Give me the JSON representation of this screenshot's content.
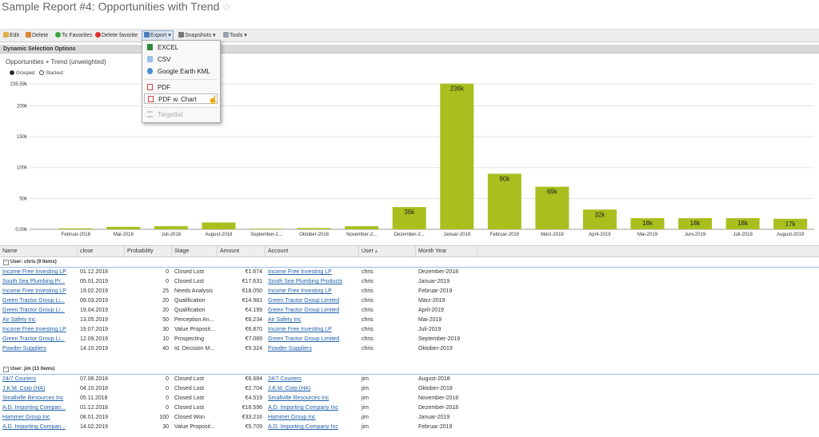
{
  "page_title": "Sample Report #4: Opportunities with Trend",
  "toolbar": {
    "edit": "Edit",
    "delete": "Delete",
    "to_favorites": "To Favorites",
    "delete_favorite": "Delete favorite",
    "export": "Export",
    "snapshots": "Snapshots",
    "tools": "Tools"
  },
  "export_menu": {
    "excel": "EXCEL",
    "csv": "CSV",
    "kml": "Google Earth KML",
    "pdf": "PDF",
    "pdf_chart": "PDF w. Chart",
    "targetlist": "Targetlist"
  },
  "section_title": "Dynamic Selection Options",
  "chart_options": {
    "grouped": "Grouped",
    "stacked": "Stacked",
    "selected": "grouped"
  },
  "chart_data": {
    "type": "bar",
    "title": "Opportunities + Trend (unweighted)",
    "bar_color": "#a8bf1e",
    "categories": [
      "Februar-2018",
      "Mai-2018",
      "Juli-2018",
      "August-2018",
      "September-2...",
      "Oktober-2018",
      "November-2...",
      "Dezember-2...",
      "Januar-2019",
      "Februar-2019",
      "März-2019",
      "April-2019",
      "Mai-2019",
      "Juni-2019",
      "Juli-2019",
      "August-2019"
    ],
    "values": [
      1500,
      4000,
      5000,
      11000,
      1000,
      2000,
      5000,
      36000,
      236000,
      90000,
      69000,
      32000,
      18000,
      18000,
      18000,
      17000
    ],
    "data_labels": [
      "",
      "",
      "",
      "",
      "",
      "",
      "",
      "36k",
      "236k",
      "90k",
      "69k",
      "32k",
      "18k",
      "18k",
      "18k",
      "17k"
    ],
    "ylim": [
      0,
      235590
    ],
    "yticks": [
      0,
      50000,
      100000,
      150000,
      200000,
      235590
    ],
    "ytick_labels": [
      "0,00k",
      "50k",
      "100k",
      "150k",
      "200k",
      "235,59k"
    ],
    "grid": true
  },
  "grid": {
    "columns": [
      "Name",
      "close",
      "Probability",
      "Stage",
      "Amount",
      "Account",
      "User",
      "Month Year"
    ],
    "groups": [
      {
        "label": "User: chris (9 Items)",
        "rows": [
          [
            "Income Free Investing LP",
            "01.12.2018",
            "0",
            "Closed Lost",
            "€1.674",
            "Income Free Investing LP",
            "chris",
            "Dezember-2018"
          ],
          [
            "South Sea Plumbing Pr...",
            "05.01.2019",
            "0",
            "Closed Lost",
            "€17.631",
            "South Sea Plumbing Products",
            "chris",
            "Januar-2019"
          ],
          [
            "Income Free Investing LP",
            "19.02.2019",
            "25",
            "Needs Analysis",
            "€18.050",
            "Income Free Investing LP",
            "chris",
            "Februar-2019"
          ],
          [
            "Green Tractor Group Li...",
            "09.03.2019",
            "20",
            "Qualification",
            "€14.981",
            "Green Tractor Group Limited",
            "chris",
            "März-2019"
          ],
          [
            "Green Tractor Group Li...",
            "19.04.2019",
            "20",
            "Qualification",
            "€4.199",
            "Green Tractor Group Limited",
            "chris",
            "April-2019"
          ],
          [
            "Air Safety Inc",
            "13.05.2019",
            "50",
            "Perception An...",
            "€6.234",
            "Air Safety Inc",
            "chris",
            "Mai-2019"
          ],
          [
            "Income Free Investing LP",
            "19.07.2019",
            "30",
            "Value Proposit...",
            "€6.870",
            "Income Free Investing LP",
            "chris",
            "Juli-2019"
          ],
          [
            "Green Tractor Group Li...",
            "12.09.2019",
            "10",
            "Prospecting",
            "€7.089",
            "Green Tractor Group Limited",
            "chris",
            "September-2019"
          ],
          [
            "Powder Suppliers",
            "14.10.2019",
            "40",
            "Id. Decision M...",
            "€5.324",
            "Powder Suppliers",
            "chris",
            "Oktober-2019"
          ]
        ]
      },
      {
        "label": "User: jim (13 Items)",
        "rows": [
          [
            "24/7 Couriers",
            "07.08.2018",
            "0",
            "Closed Lost",
            "€6.684",
            "24/7 Couriers",
            "jim",
            "August-2018"
          ],
          [
            "J.K.M. Corp (HA)",
            "04.10.2018",
            "0",
            "Closed Lost",
            "€2.704",
            "J.K.M. Corp (HA)",
            "jim",
            "Oktober-2018"
          ],
          [
            "Smallville Resources Inc",
            "05.11.2018",
            "0",
            "Closed Lost",
            "€4.519",
            "Smallville Resources Inc",
            "jim",
            "November-2018"
          ],
          [
            "A.D. Importing Compan...",
            "01.12.2018",
            "0",
            "Closed Lost",
            "€16.596",
            "A.D. Importing Company Inc",
            "jim",
            "Dezember-2018"
          ],
          [
            "Hammer Group Inc",
            "08.01.2019",
            "100",
            "Closed Won",
            "€33.216",
            "Hammer Group Inc",
            "jim",
            "Januar-2019"
          ],
          [
            "A.D. Importing Compan...",
            "14.02.2019",
            "30",
            "Value Proposit...",
            "€5.709",
            "A.D. Importing Company Inc",
            "jim",
            "Februar-2019"
          ]
        ]
      }
    ]
  }
}
